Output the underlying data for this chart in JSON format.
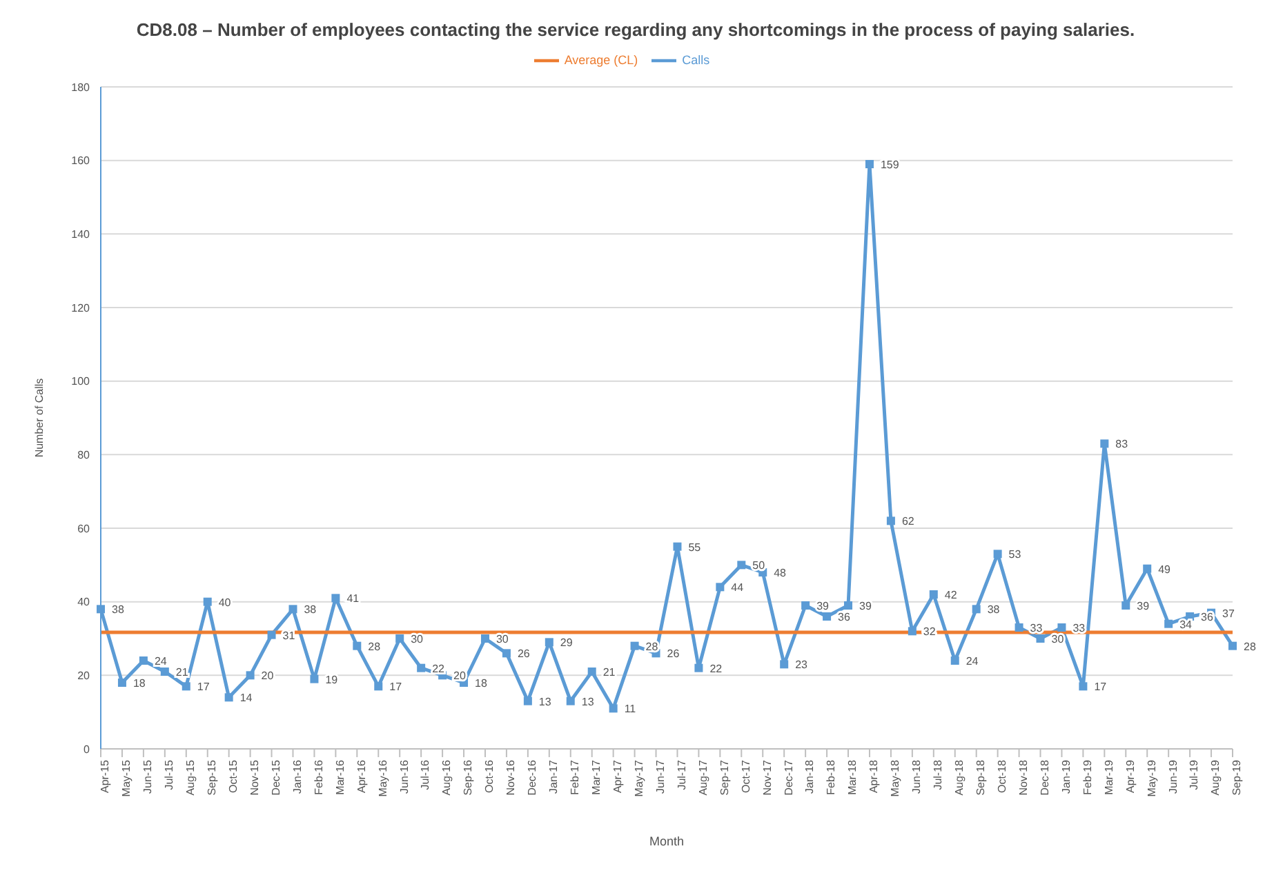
{
  "chart_data": {
    "type": "line",
    "title": "CD8.08 – Number of employees contacting the service regarding any shortcomings in the process of paying salaries.",
    "xlabel": "Month",
    "ylabel": "Number of Calls",
    "categories": [
      "Apr-15",
      "May-15",
      "Jun-15",
      "Jul-15",
      "Aug-15",
      "Sep-15",
      "Oct-15",
      "Nov-15",
      "Dec-15",
      "Jan-16",
      "Feb-16",
      "Mar-16",
      "Apr-16",
      "May-16",
      "Jun-16",
      "Jul-16",
      "Aug-16",
      "Sep-16",
      "Oct-16",
      "Nov-16",
      "Dec-16",
      "Jan-17",
      "Feb-17",
      "Mar-17",
      "Apr-17",
      "May-17",
      "Jun-17",
      "Jul-17",
      "Aug-17",
      "Sep-17",
      "Oct-17",
      "Nov-17",
      "Dec-17",
      "Jan-18",
      "Feb-18",
      "Mar-18",
      "Apr-18",
      "May-18",
      "Jun-18",
      "Jul-18",
      "Aug-18",
      "Sep-18",
      "Oct-18",
      "Nov-18",
      "Dec-18",
      "Jan-19",
      "Feb-19",
      "Mar-19",
      "Apr-19",
      "May-19",
      "Jun-19",
      "Jul-19",
      "Aug-19",
      "Sep-19"
    ],
    "series": [
      {
        "name": "Calls",
        "color": "#5b9bd5",
        "marker": "square",
        "values": [
          38,
          18,
          24,
          21,
          17,
          40,
          14,
          20,
          31,
          38,
          19,
          41,
          28,
          17,
          30,
          22,
          20,
          18,
          30,
          26,
          13,
          29,
          13,
          21,
          11,
          28,
          26,
          55,
          22,
          44,
          50,
          48,
          23,
          39,
          36,
          39,
          159,
          62,
          32,
          42,
          24,
          38,
          53,
          33,
          30,
          33,
          17,
          83,
          39,
          49,
          34,
          36,
          37,
          28
        ],
        "value_labels": [
          "38",
          "18",
          "24",
          "21",
          "17",
          "40",
          "14",
          "20",
          "31",
          "38",
          "19",
          "41",
          "28",
          "17",
          "30",
          "22",
          "20",
          "18",
          "30",
          "26",
          "13",
          "29",
          "13",
          "21",
          "11",
          "28",
          "26",
          "55",
          "22",
          "44",
          "50",
          "48",
          "23",
          "39",
          "36",
          "39",
          "159",
          "62",
          "32",
          "42",
          "24",
          "38",
          "53",
          "33",
          "30",
          "33",
          "17",
          "83",
          "39",
          "49",
          "34",
          "36",
          "37",
          "28"
        ]
      },
      {
        "name": "Average (CL)",
        "color": "#ed7d31",
        "marker": "none",
        "values": [
          31.7,
          31.7,
          31.7,
          31.7,
          31.7,
          31.7,
          31.7,
          31.7,
          31.7,
          31.7,
          31.7,
          31.7,
          31.7,
          31.7,
          31.7,
          31.7,
          31.7,
          31.7,
          31.7,
          31.7,
          31.7,
          31.7,
          31.7,
          31.7,
          31.7,
          31.7,
          31.7,
          31.7,
          31.7,
          31.7,
          31.7,
          31.7,
          31.7,
          31.7,
          31.7,
          31.7,
          31.7,
          31.7,
          31.7,
          31.7,
          31.7,
          31.7,
          31.7,
          31.7,
          31.7,
          31.7,
          31.7,
          31.7,
          31.7,
          31.7,
          31.7,
          31.7,
          31.7,
          31.7
        ]
      }
    ],
    "ylim": [
      0,
      180
    ],
    "yticks": [
      0,
      20,
      40,
      60,
      80,
      100,
      120,
      140,
      160,
      180
    ],
    "grid": "y",
    "legend": "top",
    "line_style": "solid"
  }
}
